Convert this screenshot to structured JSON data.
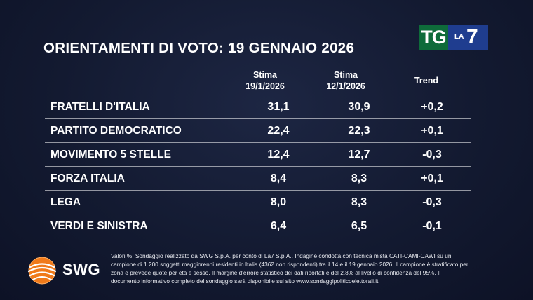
{
  "title": "ORIENTAMENTI DI VOTO: 19 GENNAIO 2026",
  "logo": {
    "tg": "TG",
    "la": "LA",
    "seven": "7"
  },
  "table": {
    "headers": [
      {
        "line1": "Stima",
        "line2": "19/1/2026"
      },
      {
        "line1": "Stima",
        "line2": "12/1/2026"
      },
      {
        "line1": "Trend",
        "line2": ""
      }
    ],
    "rows": [
      {
        "party": "FRATELLI D'ITALIA",
        "current": "31,1",
        "previous": "30,9",
        "trend": "+0,2"
      },
      {
        "party": "PARTITO DEMOCRATICO",
        "current": "22,4",
        "previous": "22,3",
        "trend": "+0,1"
      },
      {
        "party": "MOVIMENTO 5 STELLE",
        "current": "12,4",
        "previous": "12,7",
        "trend": "-0,3"
      },
      {
        "party": "FORZA ITALIA",
        "current": "8,4",
        "previous": "8,3",
        "trend": "+0,1"
      },
      {
        "party": "LEGA",
        "current": "8,0",
        "previous": "8,3",
        "trend": "-0,3"
      },
      {
        "party": "VERDI E SINISTRA",
        "current": "6,4",
        "previous": "6,5",
        "trend": "-0,1"
      }
    ]
  },
  "footer": {
    "brand": "SWG",
    "note": "Valori %. Sondaggio realizzato da SWG S.p.A. per conto di La7 S.p.A.. Indagine condotta con tecnica mista CATI-CAMI-CAWI su un campione di 1.200 soggetti maggiorenni residenti in Italia (4362 non rispondenti) tra il 14 e il 19 gennaio 2026. Il campione è stratificato per zona e prevede quote per età e sesso. Il margine d'errore statistico dei dati riportati è del 2,8% al livello di confidenza del 95%. Il documento informativo completo del sondaggio sarà disponibile sul sito www.sondaggipoliticoelettorali.it."
  },
  "colors": {
    "background": "#131a31",
    "tg_green": "#0e6b3a",
    "la7_blue": "#1f3d8f",
    "swg_orange": "#f07a1a"
  }
}
